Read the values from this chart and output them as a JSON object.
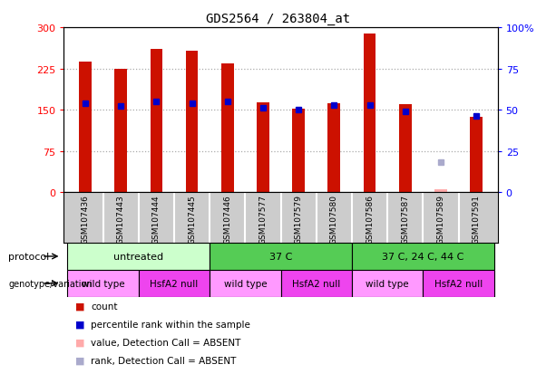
{
  "title": "GDS2564 / 263804_at",
  "samples": [
    "GSM107436",
    "GSM107443",
    "GSM107444",
    "GSM107445",
    "GSM107446",
    "GSM107577",
    "GSM107579",
    "GSM107580",
    "GSM107586",
    "GSM107587",
    "GSM107589",
    "GSM107591"
  ],
  "count_values": [
    237,
    225,
    260,
    258,
    235,
    163,
    152,
    162,
    289,
    160,
    5,
    137
  ],
  "rank_values": [
    54,
    52,
    55,
    54,
    55,
    51,
    50,
    53,
    53,
    49,
    18,
    46
  ],
  "absent": [
    false,
    false,
    false,
    false,
    false,
    false,
    false,
    false,
    false,
    false,
    true,
    false
  ],
  "proto_spans": [
    [
      0,
      3,
      "untreated",
      "#ccffcc"
    ],
    [
      4,
      7,
      "37 C",
      "#55cc55"
    ],
    [
      8,
      11,
      "37 C, 24 C, 44 C",
      "#55cc55"
    ]
  ],
  "geno_spans": [
    [
      0,
      1,
      "wild type",
      "#ff99ff"
    ],
    [
      2,
      3,
      "HsfA2 null",
      "#ee44ee"
    ],
    [
      4,
      5,
      "wild type",
      "#ff99ff"
    ],
    [
      6,
      7,
      "HsfA2 null",
      "#ee44ee"
    ],
    [
      8,
      9,
      "wild type",
      "#ff99ff"
    ],
    [
      10,
      11,
      "HsfA2 null",
      "#ee44ee"
    ]
  ],
  "ylim_left": [
    0,
    300
  ],
  "ylim_right": [
    0,
    100
  ],
  "yticks_left": [
    0,
    75,
    150,
    225,
    300
  ],
  "yticks_right": [
    0,
    25,
    50,
    75,
    100
  ],
  "ytick_right_labels": [
    "0",
    "25",
    "50",
    "75",
    "100%"
  ],
  "bar_color": "#cc1100",
  "rank_color": "#0000cc",
  "absent_bar_color": "#ffaaaa",
  "absent_rank_color": "#aaaacc",
  "bar_width": 0.35,
  "xlim": [
    -0.6,
    11.6
  ],
  "tick_bg_color": "#cccccc",
  "legend_items": [
    [
      "#cc1100",
      "count"
    ],
    [
      "#0000cc",
      "percentile rank within the sample"
    ],
    [
      "#ffaaaa",
      "value, Detection Call = ABSENT"
    ],
    [
      "#aaaacc",
      "rank, Detection Call = ABSENT"
    ]
  ]
}
